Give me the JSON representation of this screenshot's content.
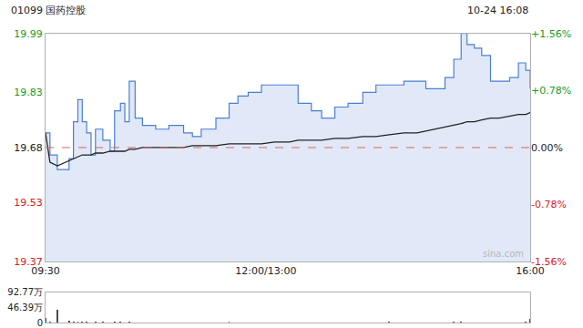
{
  "chart_data": [
    {
      "type": "line",
      "title": "01099 国药控股",
      "subtitle": "10-24 16:08",
      "annotations": [
        "sina.com"
      ],
      "x": [
        0,
        3,
        8,
        16,
        19,
        22,
        25,
        28,
        31,
        34,
        39,
        44,
        47,
        51,
        54,
        57,
        61,
        66,
        75,
        84,
        94,
        100,
        106,
        116,
        125,
        131,
        138,
        147,
        156,
        166,
        172,
        181,
        188,
        197,
        206,
        216,
        225,
        234,
        244,
        253,
        259,
        266,
        272,
        278,
        283,
        287,
        292,
        297,
        303,
        309,
        316,
        322,
        327,
        330
      ],
      "series": [
        {
          "color": "#4a7fd4",
          "values": [
            19.72,
            19.66,
            19.62,
            19.65,
            19.75,
            19.81,
            19.75,
            19.72,
            19.66,
            19.73,
            19.7,
            19.67,
            19.78,
            19.8,
            19.75,
            19.86,
            19.76,
            19.74,
            19.73,
            19.74,
            19.72,
            19.71,
            19.73,
            19.76,
            19.8,
            19.82,
            19.83,
            19.85,
            19.85,
            19.85,
            19.8,
            19.78,
            19.76,
            19.79,
            19.8,
            19.83,
            19.85,
            19.85,
            19.86,
            19.86,
            19.84,
            19.84,
            19.87,
            19.92,
            19.99,
            19.96,
            19.95,
            19.93,
            19.86,
            19.86,
            19.87,
            19.91,
            19.89,
            19.84
          ]
        },
        {
          "color": "#222222",
          "values": [
            19.72,
            19.64,
            19.63,
            19.645,
            19.65,
            19.655,
            19.66,
            19.66,
            19.66,
            19.665,
            19.665,
            19.67,
            19.67,
            19.67,
            19.67,
            19.675,
            19.675,
            19.68,
            19.68,
            19.68,
            19.68,
            19.685,
            19.685,
            19.685,
            19.69,
            19.69,
            19.69,
            19.69,
            19.695,
            19.695,
            19.7,
            19.7,
            19.7,
            19.705,
            19.705,
            19.71,
            19.71,
            19.715,
            19.72,
            19.72,
            19.725,
            19.73,
            19.735,
            19.74,
            19.745,
            19.75,
            19.75,
            19.755,
            19.76,
            19.76,
            19.765,
            19.77,
            19.77,
            19.775
          ]
        }
      ],
      "reference": 19.68,
      "xlim": [
        0,
        330
      ],
      "xticks": [
        {
          "value": 0,
          "label": "09:30"
        },
        {
          "value": 150,
          "label": "12:00/13:00"
        },
        {
          "value": 330,
          "label": "16:00"
        }
      ],
      "ylim": [
        19.37,
        19.99
      ],
      "yticks": [
        19.37,
        19.53,
        19.68,
        19.83,
        19.99
      ],
      "y2lim": [
        -1.56,
        1.56
      ],
      "y2ticks": [
        {
          "value": -1.56,
          "label": "-1.56%"
        },
        {
          "value": -0.78,
          "label": "-0.78%"
        },
        {
          "value": 0,
          "label": "0.00%"
        },
        {
          "value": 0.78,
          "label": "+0.78%"
        },
        {
          "value": 1.56,
          "label": "+1.56%"
        }
      ],
      "grid": false
    },
    {
      "type": "bar",
      "x": [
        0,
        3,
        8,
        16,
        19,
        22,
        25,
        28,
        31,
        34,
        39,
        44,
        47,
        51,
        54,
        57,
        61,
        66,
        75,
        84,
        94,
        100,
        106,
        116,
        125,
        131,
        138,
        147,
        156,
        166,
        172,
        181,
        188,
        197,
        206,
        216,
        225,
        234,
        244,
        253,
        259,
        266,
        272,
        278,
        283,
        287,
        292,
        297,
        303,
        309,
        316,
        322,
        327,
        330
      ],
      "values": [
        15,
        4,
        38,
        6,
        3,
        2,
        2,
        2,
        1,
        2,
        2,
        1,
        2,
        3,
        1,
        2,
        1,
        1,
        1,
        1,
        1,
        1,
        1,
        1,
        2,
        1,
        1,
        1,
        1,
        1,
        1,
        1,
        1,
        1,
        1,
        1,
        1,
        2,
        1,
        1,
        1,
        1,
        1,
        2,
        2,
        1,
        1,
        1,
        1,
        1,
        1,
        1,
        2,
        12
      ],
      "color": "#4a4a4a",
      "xlim": [
        0,
        330
      ],
      "ylim": [
        0,
        92.77
      ],
      "yticks": [
        0,
        {
          "value": 46.39,
          "label": "46.39万"
        },
        {
          "value": 92.77,
          "label": "92.77万"
        }
      ],
      "tick_labels": "y",
      "grid": false
    }
  ]
}
